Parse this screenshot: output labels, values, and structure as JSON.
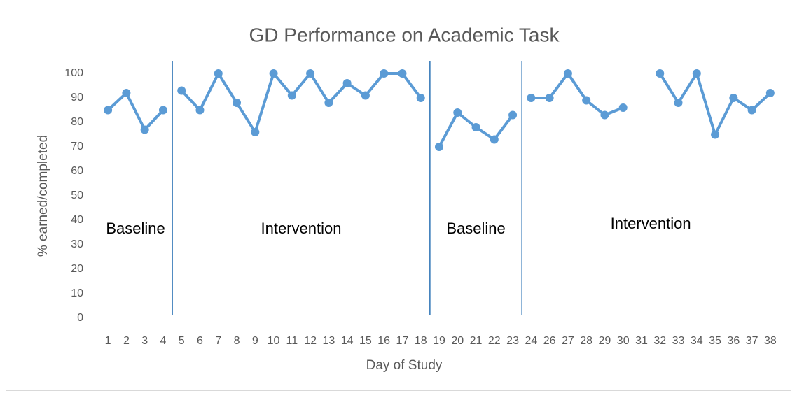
{
  "chart_data": {
    "type": "line",
    "title": "GD Performance on Academic Task",
    "x_label": "Day of Study",
    "y_label": "% earned/completed",
    "categories": [
      "1",
      "2",
      "3",
      "4",
      "5",
      "6",
      "7",
      "8",
      "9",
      "10",
      "11",
      "12",
      "13",
      "14",
      "15",
      "16",
      "17",
      "18",
      "19",
      "20",
      "21",
      "22",
      "23",
      "24",
      "26",
      "27",
      "28",
      "29",
      "30",
      "31",
      "32",
      "33",
      "34",
      "35",
      "36",
      "37",
      "38"
    ],
    "series": [
      {
        "name": "GD",
        "color": "#5b9bd5",
        "values": [
          85,
          92,
          77,
          85,
          93,
          85,
          100,
          88,
          76,
          100,
          91,
          100,
          88,
          96,
          91,
          100,
          100,
          90,
          70,
          84,
          78,
          73,
          83,
          90,
          90,
          100,
          89,
          83,
          86,
          null,
          100,
          88,
          100,
          75,
          90,
          85,
          92
        ]
      }
    ],
    "ylim": [
      0,
      100
    ],
    "yticks": [
      0,
      10,
      20,
      30,
      40,
      50,
      60,
      70,
      80,
      90,
      100
    ],
    "grid": false,
    "phase_change_after": [
      "4",
      "18",
      "23"
    ],
    "phase_line_color": "#2e75b6",
    "annotations": [
      {
        "text": "Baseline"
      },
      {
        "text": "Intervention"
      },
      {
        "text": "Baseline"
      },
      {
        "text": "Intervention"
      }
    ]
  }
}
